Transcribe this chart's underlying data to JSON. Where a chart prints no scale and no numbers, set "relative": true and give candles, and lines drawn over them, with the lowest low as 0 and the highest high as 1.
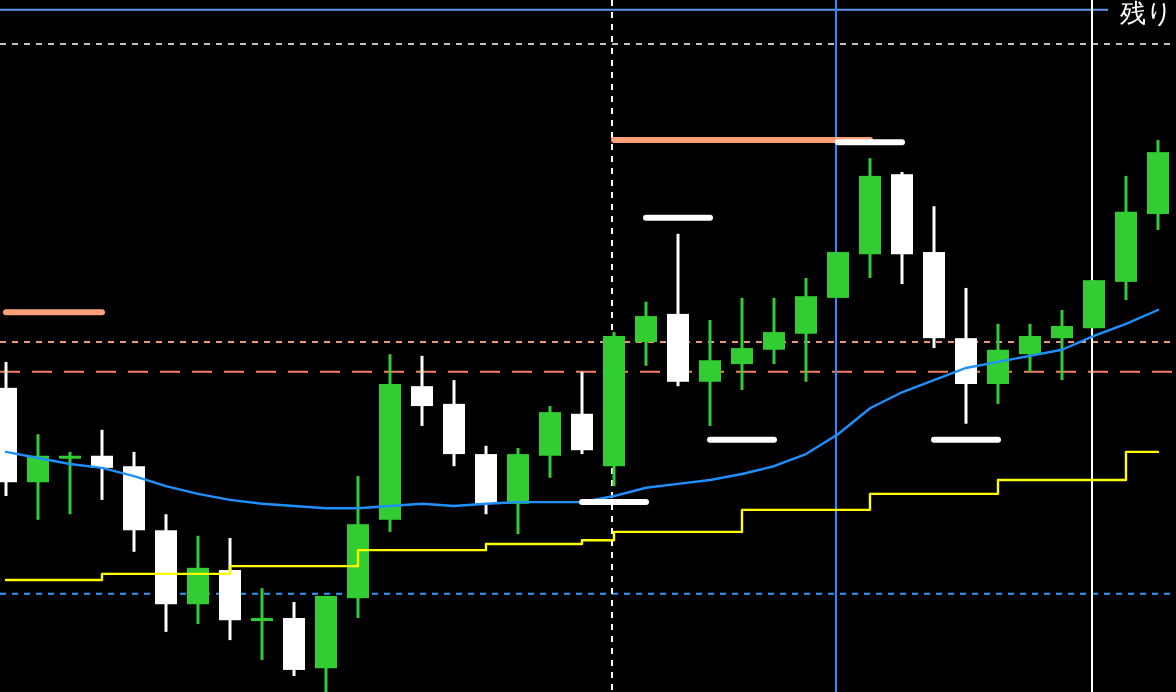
{
  "chart_data": {
    "type": "candlestick",
    "relative": true,
    "categories": [
      null,
      null,
      null,
      null,
      null,
      null,
      null,
      null,
      null,
      null,
      null,
      null,
      null,
      null,
      null,
      null,
      null,
      null,
      null,
      null,
      null,
      null,
      null,
      null,
      null,
      null,
      null,
      null,
      null,
      null,
      null,
      null,
      null,
      null,
      null,
      null,
      null
    ],
    "ohlc": [
      [
        0.551,
        0.598,
        0.355,
        0.38
      ],
      [
        0.38,
        0.467,
        0.312,
        0.428
      ],
      [
        0.428,
        0.435,
        0.322,
        0.424
      ],
      [
        0.428,
        0.475,
        0.348,
        0.406
      ],
      [
        0.409,
        0.435,
        0.254,
        0.293
      ],
      [
        0.293,
        0.322,
        0.109,
        0.159
      ],
      [
        0.159,
        0.283,
        0.123,
        0.225
      ],
      [
        0.221,
        0.279,
        0.094,
        0.13
      ],
      [
        0.13,
        0.188,
        0.058,
        0.134
      ],
      [
        0.134,
        0.163,
        0.029,
        0.04
      ],
      [
        0.043,
        0.174,
        0,
        0.174
      ],
      [
        0.17,
        0.391,
        0.134,
        0.304
      ],
      [
        0.312,
        0.612,
        0.29,
        0.558
      ],
      [
        0.554,
        0.609,
        0.482,
        0.518
      ],
      [
        0.522,
        0.565,
        0.409,
        0.431
      ],
      [
        0.431,
        0.446,
        0.322,
        0.341
      ],
      [
        0.341,
        0.442,
        0.286,
        0.431
      ],
      [
        0.428,
        0.518,
        0.388,
        0.507
      ],
      [
        0.504,
        0.58,
        0.431,
        0.438
      ],
      [
        0.409,
        0.652,
        0.373,
        0.645
      ],
      [
        0.634,
        0.707,
        0.591,
        0.681
      ],
      [
        0.685,
        0.83,
        0.554,
        0.562
      ],
      [
        0.562,
        0.674,
        0.482,
        0.601
      ],
      [
        0.594,
        0.714,
        0.547,
        0.623
      ],
      [
        0.62,
        0.714,
        0.594,
        0.652
      ],
      [
        0.649,
        0.75,
        0.562,
        0.717
      ],
      [
        0.714,
        0.797,
        0.714,
        0.797
      ],
      [
        0.793,
        0.967,
        0.75,
        0.935
      ],
      [
        0.938,
        0.942,
        0.739,
        0.793
      ],
      [
        0.797,
        0.88,
        0.623,
        0.641
      ],
      [
        0.641,
        0.732,
        0.486,
        0.558
      ],
      [
        0.558,
        0.667,
        0.522,
        0.62
      ],
      [
        0.612,
        0.667,
        0.58,
        0.645
      ],
      [
        0.641,
        0.692,
        0.565,
        0.663
      ],
      [
        0.659,
        0.746,
        0.659,
        0.746
      ],
      [
        0.743,
        0.935,
        0.71,
        0.87
      ],
      [
        0.866,
        1,
        0.837,
        0.978
      ]
    ],
    "colors": [
      "#ffffff",
      "#32cd32",
      "#32cd32",
      "#ffffff",
      "#ffffff",
      "#ffffff",
      "#32cd32",
      "#ffffff",
      "#32cd32",
      "#ffffff",
      "#32cd32",
      "#32cd32",
      "#32cd32",
      "#ffffff",
      "#ffffff",
      "#ffffff",
      "#32cd32",
      "#32cd32",
      "#ffffff",
      "#32cd32",
      "#32cd32",
      "#ffffff",
      "#32cd32",
      "#32cd32",
      "#32cd32",
      "#32cd32",
      "#32cd32",
      "#32cd32",
      "#ffffff",
      "#ffffff",
      "#ffffff",
      "#32cd32",
      "#32cd32",
      "#32cd32",
      "#32cd32",
      "#32cd32",
      "#32cd32"
    ],
    "series": [
      {
        "type": "line",
        "color": "#1e90ff",
        "values": [
          0.435,
          0.424,
          0.413,
          0.406,
          0.391,
          0.373,
          0.359,
          0.348,
          0.341,
          0.337,
          0.333,
          0.333,
          0.337,
          0.341,
          0.337,
          0.341,
          0.344,
          0.344,
          0.344,
          0.355,
          0.37,
          0.377,
          0.384,
          0.395,
          0.409,
          0.431,
          0.467,
          0.514,
          0.543,
          0.565,
          0.587,
          0.598,
          0.609,
          0.62,
          0.645,
          0.667,
          0.692
        ]
      },
      {
        "type": "step",
        "color": "#ffff00",
        "values": [
          0.203,
          0.203,
          0.203,
          0.214,
          0.214,
          0.214,
          0.214,
          0.228,
          0.228,
          0.228,
          0.228,
          0.257,
          0.257,
          0.257,
          0.257,
          0.268,
          0.268,
          0.268,
          0.275,
          0.29,
          0.29,
          0.29,
          0.29,
          0.33,
          0.33,
          0.33,
          0.33,
          0.359,
          0.359,
          0.359,
          0.359,
          0.384,
          0.384,
          0.384,
          0.384,
          0.435,
          0.435
        ]
      },
      {
        "type": "line",
        "color": "#ffa07a",
        "values": [
          0.688,
          0.688,
          0.688,
          0.688,
          null,
          null,
          null,
          null,
          null,
          null,
          null,
          null,
          null,
          null,
          null,
          null,
          null,
          null,
          null,
          null,
          null,
          null,
          null,
          null,
          null,
          null,
          null,
          null,
          null,
          null,
          null,
          null,
          null,
          null,
          null,
          null,
          null
        ]
      },
      {
        "type": "line",
        "color": "#ffa07a",
        "values": [
          null,
          null,
          null,
          null,
          null,
          null,
          null,
          null,
          null,
          null,
          null,
          null,
          null,
          null,
          null,
          null,
          null,
          null,
          null,
          1,
          1,
          1,
          1,
          1,
          1,
          1,
          1,
          1,
          null,
          null,
          null,
          null,
          null,
          null,
          null,
          null,
          null
        ]
      },
      {
        "type": "line",
        "color": "#ffffff",
        "values": [
          null,
          null,
          null,
          null,
          null,
          null,
          null,
          null,
          null,
          null,
          null,
          null,
          null,
          null,
          null,
          null,
          null,
          null,
          0.344,
          0.344,
          0.344,
          null,
          null,
          null,
          null,
          null,
          null,
          null,
          null,
          null,
          null,
          null,
          null,
          null,
          null,
          null,
          null
        ]
      },
      {
        "type": "line",
        "color": "#ffffff",
        "values": [
          null,
          null,
          null,
          null,
          null,
          null,
          null,
          null,
          null,
          null,
          null,
          null,
          null,
          null,
          null,
          null,
          null,
          null,
          null,
          null,
          0.859,
          0.859,
          0.859,
          null,
          null,
          null,
          null,
          null,
          null,
          null,
          null,
          null,
          null,
          null,
          null,
          null,
          null
        ]
      },
      {
        "type": "line",
        "color": "#ffffff",
        "values": [
          null,
          null,
          null,
          null,
          null,
          null,
          null,
          null,
          null,
          null,
          null,
          null,
          null,
          null,
          null,
          null,
          null,
          null,
          null,
          null,
          null,
          null,
          0.457,
          0.457,
          0.457,
          null,
          null,
          null,
          null,
          null,
          null,
          null,
          null,
          null,
          null,
          null,
          null
        ]
      },
      {
        "type": "line",
        "color": "#ffffff",
        "values": [
          null,
          null,
          null,
          null,
          null,
          null,
          null,
          null,
          null,
          null,
          null,
          null,
          null,
          null,
          null,
          null,
          null,
          null,
          null,
          null,
          null,
          null,
          null,
          null,
          null,
          null,
          0.996,
          0.996,
          0.996,
          null,
          null,
          null,
          null,
          null,
          null,
          null,
          null
        ]
      },
      {
        "type": "line",
        "color": "#ffffff",
        "values": [
          null,
          null,
          null,
          null,
          null,
          null,
          null,
          null,
          null,
          null,
          null,
          null,
          null,
          null,
          null,
          null,
          null,
          null,
          null,
          null,
          null,
          null,
          null,
          null,
          null,
          null,
          null,
          null,
          null,
          0.457,
          0.457,
          0.457,
          null,
          null,
          null,
          null,
          null
        ]
      }
    ],
    "ref_lines": [
      {
        "axis": "y",
        "value": 0.58,
        "color": "#f08060",
        "line_style": "dashed"
      },
      {
        "axis": "y",
        "value": 0.634,
        "color": "#e9967a",
        "line_style": "dotted"
      },
      {
        "axis": "y",
        "value": 0.178,
        "color": "#3399ff",
        "line_style": "dotted"
      },
      {
        "axis": "y",
        "value": 1.174,
        "color": "#c0c0c0",
        "line_style": "dotted"
      },
      {
        "axis": "y",
        "value": 1.236,
        "color": "#6495ed",
        "line_style": "solid"
      }
    ],
    "annotations": [
      "残り"
    ]
  }
}
